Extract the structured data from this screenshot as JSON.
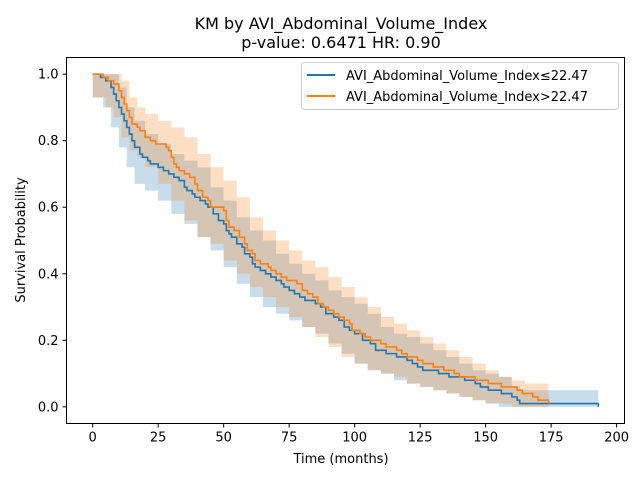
{
  "chart_data": {
    "type": "line",
    "title": "KM by AVI_Abdominal_Volume_Index",
    "subtitle": "p-value: 0.6471  HR: 0.90",
    "xlabel": "Time (months)",
    "ylabel": "Survival Probability",
    "xlim": [
      -10,
      203
    ],
    "ylim": [
      -0.05,
      1.05
    ],
    "xticks": [
      0,
      25,
      50,
      75,
      100,
      125,
      150,
      175,
      200
    ],
    "yticks": [
      0.0,
      0.2,
      0.4,
      0.6,
      0.8,
      1.0
    ],
    "grid": false,
    "legend_position": "top-right",
    "series": [
      {
        "name": "AVI_Abdominal_Volume_Index≤22.47",
        "color": "#1f77b4",
        "steps": [
          [
            0,
            1.0
          ],
          [
            3,
            0.99
          ],
          [
            5,
            0.98
          ],
          [
            7,
            0.96
          ],
          [
            8,
            0.94
          ],
          [
            9,
            0.92
          ],
          [
            10,
            0.9
          ],
          [
            11,
            0.88
          ],
          [
            12,
            0.86
          ],
          [
            13,
            0.84
          ],
          [
            14,
            0.82
          ],
          [
            15,
            0.8
          ],
          [
            16,
            0.78
          ],
          [
            18,
            0.76
          ],
          [
            19,
            0.75
          ],
          [
            21,
            0.74
          ],
          [
            22,
            0.73
          ],
          [
            25,
            0.72
          ],
          [
            27,
            0.71
          ],
          [
            29,
            0.7
          ],
          [
            31,
            0.69
          ],
          [
            33,
            0.68
          ],
          [
            35,
            0.66
          ],
          [
            36,
            0.65
          ],
          [
            38,
            0.64
          ],
          [
            39,
            0.63
          ],
          [
            41,
            0.62
          ],
          [
            43,
            0.61
          ],
          [
            44,
            0.6
          ],
          [
            46,
            0.58
          ],
          [
            48,
            0.56
          ],
          [
            50,
            0.55
          ],
          [
            51,
            0.53
          ],
          [
            52,
            0.52
          ],
          [
            53,
            0.51
          ],
          [
            55,
            0.49
          ],
          [
            57,
            0.48
          ],
          [
            58,
            0.46
          ],
          [
            60,
            0.45
          ],
          [
            61,
            0.43
          ],
          [
            62,
            0.42
          ],
          [
            64,
            0.41
          ],
          [
            66,
            0.4
          ],
          [
            68,
            0.39
          ],
          [
            70,
            0.38
          ],
          [
            72,
            0.37
          ],
          [
            73,
            0.36
          ],
          [
            75,
            0.35
          ],
          [
            77,
            0.34
          ],
          [
            79,
            0.33
          ],
          [
            81,
            0.32
          ],
          [
            85,
            0.31
          ],
          [
            87,
            0.3
          ],
          [
            89,
            0.28
          ],
          [
            92,
            0.27
          ],
          [
            94,
            0.26
          ],
          [
            96,
            0.24
          ],
          [
            98,
            0.23
          ],
          [
            100,
            0.22
          ],
          [
            103,
            0.2
          ],
          [
            106,
            0.19
          ],
          [
            108,
            0.17
          ],
          [
            112,
            0.16
          ],
          [
            116,
            0.15
          ],
          [
            120,
            0.14
          ],
          [
            122,
            0.13
          ],
          [
            124,
            0.12
          ],
          [
            126,
            0.11
          ],
          [
            132,
            0.1
          ],
          [
            136,
            0.09
          ],
          [
            142,
            0.08
          ],
          [
            146,
            0.07
          ],
          [
            148,
            0.06
          ],
          [
            151,
            0.05
          ],
          [
            156,
            0.04
          ],
          [
            160,
            0.03
          ],
          [
            162,
            0.02
          ],
          [
            163,
            0.01
          ],
          [
            193,
            0.0
          ]
        ],
        "ci_lower": [
          [
            0,
            1.0
          ],
          [
            4,
            0.93
          ],
          [
            7,
            0.9
          ],
          [
            10,
            0.84
          ],
          [
            13,
            0.78
          ],
          [
            16,
            0.72
          ],
          [
            20,
            0.67
          ],
          [
            25,
            0.65
          ],
          [
            30,
            0.62
          ],
          [
            35,
            0.58
          ],
          [
            40,
            0.55
          ],
          [
            45,
            0.51
          ],
          [
            50,
            0.47
          ],
          [
            55,
            0.42
          ],
          [
            60,
            0.37
          ],
          [
            65,
            0.33
          ],
          [
            70,
            0.3
          ],
          [
            75,
            0.28
          ],
          [
            80,
            0.26
          ],
          [
            85,
            0.24
          ],
          [
            90,
            0.22
          ],
          [
            95,
            0.19
          ],
          [
            100,
            0.16
          ],
          [
            105,
            0.13
          ],
          [
            110,
            0.11
          ],
          [
            115,
            0.1
          ],
          [
            120,
            0.08
          ],
          [
            125,
            0.07
          ],
          [
            130,
            0.06
          ],
          [
            135,
            0.05
          ],
          [
            140,
            0.04
          ],
          [
            145,
            0.03
          ],
          [
            150,
            0.02
          ],
          [
            155,
            0.01
          ],
          [
            160,
            0.0
          ],
          [
            193,
            0.0
          ]
        ],
        "ci_upper": [
          [
            0,
            1.0
          ],
          [
            4,
            1.0
          ],
          [
            7,
            1.0
          ],
          [
            10,
            0.96
          ],
          [
            13,
            0.9
          ],
          [
            16,
            0.86
          ],
          [
            20,
            0.82
          ],
          [
            25,
            0.79
          ],
          [
            30,
            0.76
          ],
          [
            35,
            0.74
          ],
          [
            40,
            0.72
          ],
          [
            45,
            0.66
          ],
          [
            50,
            0.62
          ],
          [
            55,
            0.57
          ],
          [
            60,
            0.53
          ],
          [
            65,
            0.5
          ],
          [
            70,
            0.46
          ],
          [
            75,
            0.43
          ],
          [
            80,
            0.4
          ],
          [
            85,
            0.38
          ],
          [
            90,
            0.35
          ],
          [
            95,
            0.33
          ],
          [
            100,
            0.31
          ],
          [
            105,
            0.28
          ],
          [
            110,
            0.24
          ],
          [
            115,
            0.22
          ],
          [
            120,
            0.21
          ],
          [
            125,
            0.19
          ],
          [
            130,
            0.17
          ],
          [
            135,
            0.15
          ],
          [
            140,
            0.13
          ],
          [
            145,
            0.11
          ],
          [
            150,
            0.1
          ],
          [
            155,
            0.09
          ],
          [
            160,
            0.06
          ],
          [
            163,
            0.05
          ],
          [
            193,
            0.05
          ]
        ]
      },
      {
        "name": "AVI_Abdominal_Volume_Index>22.47",
        "color": "#ff7f0e",
        "steps": [
          [
            0,
            1.0
          ],
          [
            4,
            0.99
          ],
          [
            6,
            0.98
          ],
          [
            8,
            0.97
          ],
          [
            10,
            0.95
          ],
          [
            11,
            0.93
          ],
          [
            12,
            0.91
          ],
          [
            13,
            0.89
          ],
          [
            14,
            0.87
          ],
          [
            15,
            0.85
          ],
          [
            17,
            0.84
          ],
          [
            18,
            0.83
          ],
          [
            20,
            0.81
          ],
          [
            22,
            0.8
          ],
          [
            24,
            0.79
          ],
          [
            28,
            0.78
          ],
          [
            29,
            0.77
          ],
          [
            30,
            0.75
          ],
          [
            31,
            0.73
          ],
          [
            32,
            0.72
          ],
          [
            33,
            0.71
          ],
          [
            35,
            0.7
          ],
          [
            37,
            0.69
          ],
          [
            39,
            0.67
          ],
          [
            40,
            0.65
          ],
          [
            42,
            0.63
          ],
          [
            44,
            0.62
          ],
          [
            45,
            0.6
          ],
          [
            50,
            0.59
          ],
          [
            51,
            0.56
          ],
          [
            52,
            0.54
          ],
          [
            54,
            0.53
          ],
          [
            56,
            0.51
          ],
          [
            58,
            0.49
          ],
          [
            59,
            0.47
          ],
          [
            61,
            0.46
          ],
          [
            62,
            0.44
          ],
          [
            64,
            0.43
          ],
          [
            67,
            0.42
          ],
          [
            68,
            0.41
          ],
          [
            70,
            0.4
          ],
          [
            72,
            0.39
          ],
          [
            74,
            0.38
          ],
          [
            78,
            0.37
          ],
          [
            80,
            0.35
          ],
          [
            82,
            0.34
          ],
          [
            84,
            0.33
          ],
          [
            86,
            0.31
          ],
          [
            88,
            0.3
          ],
          [
            90,
            0.29
          ],
          [
            92,
            0.28
          ],
          [
            94,
            0.27
          ],
          [
            96,
            0.26
          ],
          [
            98,
            0.25
          ],
          [
            99,
            0.23
          ],
          [
            102,
            0.22
          ],
          [
            104,
            0.21
          ],
          [
            106,
            0.2
          ],
          [
            110,
            0.19
          ],
          [
            112,
            0.18
          ],
          [
            116,
            0.17
          ],
          [
            118,
            0.16
          ],
          [
            120,
            0.15
          ],
          [
            124,
            0.14
          ],
          [
            126,
            0.13
          ],
          [
            130,
            0.12
          ],
          [
            134,
            0.11
          ],
          [
            138,
            0.1
          ],
          [
            140,
            0.09
          ],
          [
            146,
            0.08
          ],
          [
            151,
            0.07
          ],
          [
            156,
            0.06
          ],
          [
            162,
            0.05
          ],
          [
            164,
            0.04
          ],
          [
            168,
            0.03
          ],
          [
            170,
            0.02
          ],
          [
            174,
            0.01
          ]
        ],
        "ci_lower": [
          [
            0,
            1.0
          ],
          [
            5,
            0.93
          ],
          [
            8,
            0.9
          ],
          [
            11,
            0.87
          ],
          [
            14,
            0.81
          ],
          [
            17,
            0.77
          ],
          [
            20,
            0.75
          ],
          [
            25,
            0.72
          ],
          [
            30,
            0.67
          ],
          [
            35,
            0.62
          ],
          [
            40,
            0.56
          ],
          [
            45,
            0.51
          ],
          [
            50,
            0.49
          ],
          [
            55,
            0.44
          ],
          [
            60,
            0.4
          ],
          [
            65,
            0.36
          ],
          [
            70,
            0.33
          ],
          [
            75,
            0.3
          ],
          [
            80,
            0.27
          ],
          [
            85,
            0.24
          ],
          [
            90,
            0.21
          ],
          [
            95,
            0.18
          ],
          [
            100,
            0.15
          ],
          [
            105,
            0.13
          ],
          [
            110,
            0.11
          ],
          [
            115,
            0.1
          ],
          [
            120,
            0.09
          ],
          [
            125,
            0.07
          ],
          [
            130,
            0.06
          ],
          [
            135,
            0.05
          ],
          [
            140,
            0.04
          ],
          [
            145,
            0.03
          ],
          [
            150,
            0.02
          ],
          [
            160,
            0.01
          ],
          [
            174,
            0.0
          ]
        ],
        "ci_upper": [
          [
            0,
            1.0
          ],
          [
            5,
            1.0
          ],
          [
            8,
            1.0
          ],
          [
            11,
            0.98
          ],
          [
            14,
            0.93
          ],
          [
            17,
            0.9
          ],
          [
            20,
            0.88
          ],
          [
            25,
            0.86
          ],
          [
            30,
            0.84
          ],
          [
            35,
            0.81
          ],
          [
            40,
            0.76
          ],
          [
            45,
            0.72
          ],
          [
            50,
            0.68
          ],
          [
            55,
            0.63
          ],
          [
            60,
            0.57
          ],
          [
            65,
            0.53
          ],
          [
            70,
            0.5
          ],
          [
            75,
            0.47
          ],
          [
            80,
            0.44
          ],
          [
            85,
            0.42
          ],
          [
            90,
            0.39
          ],
          [
            95,
            0.36
          ],
          [
            100,
            0.33
          ],
          [
            105,
            0.3
          ],
          [
            110,
            0.27
          ],
          [
            115,
            0.25
          ],
          [
            120,
            0.23
          ],
          [
            125,
            0.21
          ],
          [
            130,
            0.19
          ],
          [
            135,
            0.17
          ],
          [
            140,
            0.15
          ],
          [
            145,
            0.13
          ],
          [
            150,
            0.11
          ],
          [
            155,
            0.09
          ],
          [
            160,
            0.08
          ],
          [
            165,
            0.07
          ],
          [
            174,
            0.07
          ]
        ]
      }
    ]
  }
}
